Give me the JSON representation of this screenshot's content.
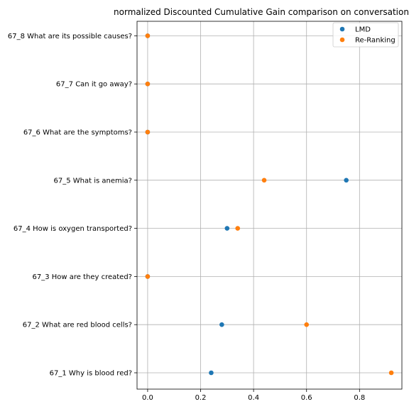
{
  "chart_data": {
    "type": "scatter",
    "title": "normalized Discounted Cumulative Gain comparison on conversation",
    "xlabel": "",
    "ylabel": "",
    "xlim": [
      -0.04,
      0.96
    ],
    "x_ticks": [
      "0.0",
      "0.2",
      "0.4",
      "0.6",
      "0.8"
    ],
    "x_tick_values": [
      0.0,
      0.2,
      0.4,
      0.6,
      0.8
    ],
    "categories": [
      "67_1 Why is blood red?",
      "67_2 What are red blood cells?",
      "67_3 How are they created?",
      "67_4 How is oxygen transported?",
      "67_5 What is anemia?",
      "67_6 What are the symptoms?",
      "67_7 Can it go away?",
      "67_8 What are its possible causes?"
    ],
    "grid": true,
    "legend_position": "top-right",
    "series": [
      {
        "name": "LMD",
        "color": "#1f77b4",
        "values": [
          0.24,
          0.28,
          0.0,
          0.3,
          0.75,
          0.0,
          0.0,
          0.0
        ]
      },
      {
        "name": "Re-Ranking",
        "color": "#ff7f0e",
        "values": [
          0.92,
          0.6,
          0.0,
          0.34,
          0.44,
          0.0,
          0.0,
          0.0
        ]
      }
    ]
  }
}
